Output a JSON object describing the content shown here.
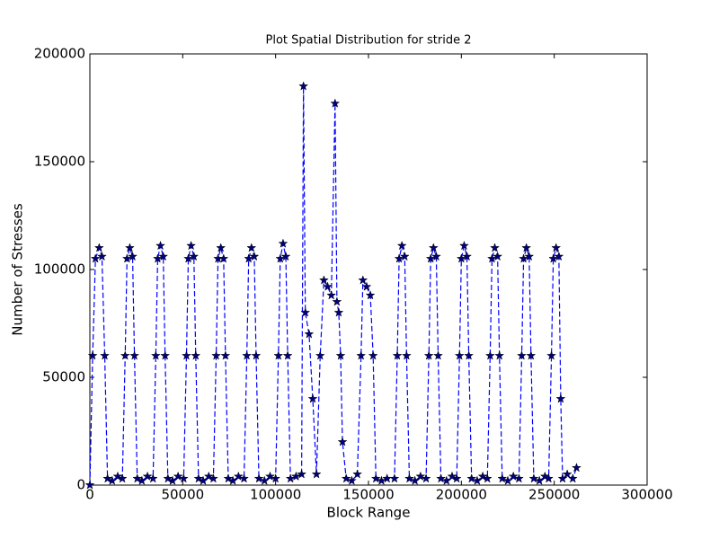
{
  "chart_data": {
    "type": "line",
    "title": "Plot Spatial Distribution for stride 2",
    "xlabel": "Block Range",
    "ylabel": "Number of Stresses",
    "xlim": [
      0,
      300000
    ],
    "ylim": [
      0,
      200000
    ],
    "xticks": [
      0,
      50000,
      100000,
      150000,
      200000,
      250000,
      300000
    ],
    "yticks": [
      0,
      50000,
      100000,
      150000,
      200000
    ],
    "grid": false,
    "series": [
      {
        "color": "#000080",
        "line_color": "#0000ff",
        "linestyle": "dashed",
        "marker": "star",
        "x": [
          0,
          1500,
          3000,
          5000,
          6500,
          8000,
          9500,
          12000,
          15000,
          17500,
          19000,
          20000,
          21500,
          23000,
          24000,
          25500,
          28000,
          31000,
          34000,
          35500,
          36500,
          38000,
          39500,
          40500,
          42000,
          44500,
          47500,
          50500,
          52000,
          53000,
          54500,
          56000,
          57000,
          58500,
          61000,
          64000,
          66500,
          68000,
          69000,
          70500,
          72000,
          73000,
          74500,
          77000,
          80000,
          83000,
          84500,
          85500,
          87000,
          88500,
          89500,
          91000,
          94000,
          97000,
          100000,
          101500,
          102500,
          104000,
          105500,
          106500,
          108000,
          111000,
          114000,
          115000,
          116000,
          118000,
          120000,
          122000,
          124000,
          126000,
          128000,
          130000,
          132000,
          133000,
          134000,
          135000,
          136000,
          138000,
          141000,
          144000,
          146000,
          147000,
          149000,
          151000,
          152500,
          154000,
          157000,
          160000,
          164000,
          165500,
          166500,
          168000,
          169500,
          170500,
          172000,
          175000,
          178000,
          181000,
          182500,
          183500,
          185000,
          186500,
          187500,
          189000,
          192000,
          195000,
          197500,
          199000,
          200000,
          201500,
          203000,
          204000,
          205500,
          208500,
          211500,
          214000,
          215500,
          216500,
          218000,
          219500,
          220500,
          222000,
          225000,
          228000,
          231000,
          232500,
          233500,
          235000,
          236500,
          237500,
          239000,
          242000,
          245000,
          247000,
          248500,
          249500,
          251000,
          252500,
          253500,
          254500,
          257000,
          260000,
          262000
        ],
        "values": [
          0,
          60000,
          105000,
          110000,
          106000,
          60000,
          3000,
          2000,
          4000,
          3000,
          60000,
          105000,
          110000,
          106000,
          60000,
          3000,
          2000,
          4000,
          3000,
          60000,
          105000,
          111000,
          106000,
          60000,
          3000,
          2000,
          4000,
          3000,
          60000,
          105000,
          111000,
          106000,
          60000,
          3000,
          2000,
          4000,
          3000,
          60000,
          105000,
          110000,
          105000,
          60000,
          3000,
          2000,
          4000,
          3000,
          60000,
          105000,
          110000,
          106000,
          60000,
          3000,
          2000,
          4000,
          3000,
          60000,
          105000,
          112000,
          106000,
          60000,
          3000,
          4000,
          5000,
          185000,
          80000,
          70000,
          40000,
          5000,
          60000,
          95000,
          92000,
          88000,
          177000,
          85000,
          80000,
          60000,
          20000,
          3000,
          2000,
          5000,
          60000,
          95000,
          92000,
          88000,
          60000,
          3000,
          2000,
          3000,
          3000,
          60000,
          105000,
          111000,
          106000,
          60000,
          3000,
          2000,
          4000,
          3000,
          60000,
          105000,
          110000,
          106000,
          60000,
          3000,
          2000,
          4000,
          3000,
          60000,
          105000,
          111000,
          106000,
          60000,
          3000,
          2000,
          4000,
          3000,
          60000,
          105000,
          110000,
          106000,
          60000,
          3000,
          2000,
          4000,
          3000,
          60000,
          105000,
          110000,
          106000,
          60000,
          3000,
          2000,
          4000,
          3000,
          60000,
          105000,
          110000,
          106000,
          40000,
          3000,
          5000,
          3000,
          8000
        ]
      }
    ]
  }
}
